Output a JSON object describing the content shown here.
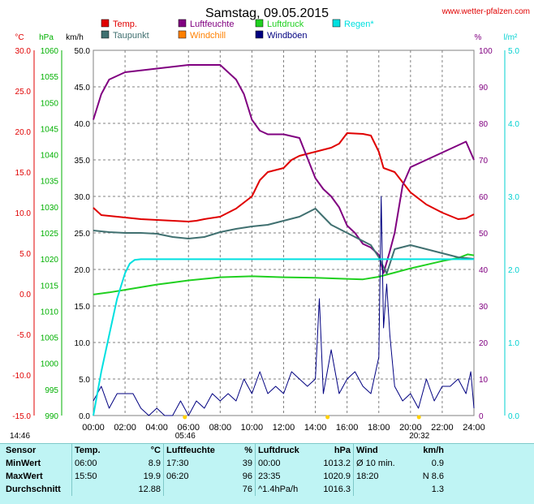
{
  "chart_data": {
    "type": "line",
    "title": "Samstag, 09.05.2015",
    "source": "www.wetter-pfalzen.com",
    "x_ticks": [
      "00:00",
      "02:00",
      "04:00",
      "06:00",
      "08:00",
      "10:00",
      "12:00",
      "14:00",
      "16:00",
      "18:00",
      "20:00",
      "22:00",
      "24:00"
    ],
    "xlim": [
      0,
      24
    ],
    "grid": true,
    "legend_position": "top",
    "axes": {
      "temp": {
        "unit": "°C",
        "ylim": [
          -15,
          30
        ],
        "ticks": [
          "30.0",
          "25.0",
          "20.0",
          "15.0",
          "10.0",
          "5.0",
          "0.0",
          "-5.0",
          "-10.0",
          "-15.0"
        ],
        "color": "#e00000"
      },
      "press": {
        "unit": "hPa",
        "ylim": [
          990,
          1060
        ],
        "ticks": [
          "1060",
          "1055",
          "1050",
          "1045",
          "1040",
          "1035",
          "1030",
          "1025",
          "1020",
          "1015",
          "1010",
          "1005",
          "1000",
          "995",
          "990"
        ],
        "color": "#00b000"
      },
      "wind": {
        "unit": "km/h",
        "ylim": [
          0,
          50
        ],
        "ticks": [
          "50.0",
          "45.0",
          "40.0",
          "35.0",
          "30.0",
          "25.0",
          "20.0",
          "15.0",
          "10.0",
          "5.0",
          "0.0"
        ],
        "color": "#000000"
      },
      "hum": {
        "unit": "%",
        "ylim": [
          0,
          100
        ],
        "ticks": [
          "100",
          "90",
          "80",
          "70",
          "60",
          "50",
          "40",
          "30",
          "20",
          "10",
          "0"
        ],
        "color": "#800080"
      },
      "rain": {
        "unit": "l/m²",
        "ylim": [
          0,
          5
        ],
        "ticks": [
          "5.0",
          "4.0",
          "3.0",
          "2.0",
          "1.0",
          "0.0"
        ],
        "color": "#00d0d0"
      }
    },
    "series": [
      {
        "name": "Temp.",
        "color": "#e00000",
        "axis": "temp",
        "x": [
          0,
          0.5,
          1,
          2,
          3,
          4,
          5,
          6,
          6.5,
          7,
          8,
          9,
          10,
          10.5,
          11,
          12,
          12.5,
          13,
          14,
          15,
          15.5,
          16,
          17,
          17.5,
          18,
          18.3,
          19,
          20,
          21,
          22,
          23,
          23.5,
          24
        ],
        "values": [
          10.6,
          9.7,
          9.6,
          9.4,
          9.2,
          9.1,
          9.0,
          8.9,
          9.0,
          9.2,
          9.5,
          10.5,
          12.0,
          14.0,
          15.0,
          15.5,
          16.5,
          17.0,
          17.5,
          18.0,
          18.5,
          19.8,
          19.7,
          19.5,
          17.5,
          15.5,
          15.0,
          12.5,
          11.0,
          10.0,
          9.2,
          9.3,
          9.8
        ]
      },
      {
        "name": "Luftfeuchte",
        "color": "#800080",
        "axis": "hum",
        "x": [
          0,
          0.5,
          1,
          1.5,
          2,
          3,
          4,
          5,
          6,
          6.5,
          7,
          8,
          9,
          9.5,
          10,
          10.5,
          11,
          12,
          13,
          14,
          14.5,
          15,
          15.5,
          16,
          16.5,
          17,
          17.5,
          18,
          18.3,
          18.7,
          19,
          19.5,
          20,
          21,
          22,
          23,
          23.5,
          24
        ],
        "values": [
          81,
          88,
          92,
          93,
          94,
          94.5,
          95,
          95.5,
          96,
          96,
          96,
          96,
          92,
          88,
          81,
          78,
          77,
          77,
          76,
          65,
          62,
          60,
          57,
          52,
          50,
          47,
          46,
          44,
          39,
          45,
          50,
          63,
          68,
          70,
          72,
          74,
          75,
          70
        ]
      },
      {
        "name": "Luftdruck",
        "color": "#20d020",
        "axis": "press",
        "x": [
          0,
          1,
          2,
          3,
          4,
          5,
          6,
          8,
          10,
          12,
          14,
          16,
          17,
          18,
          19,
          20,
          21,
          22,
          23,
          23.6,
          24
        ],
        "values": [
          1013.2,
          1013.6,
          1014.1,
          1014.6,
          1015.1,
          1015.5,
          1015.9,
          1016.5,
          1016.7,
          1016.5,
          1016.4,
          1016.2,
          1016.1,
          1016.6,
          1017.4,
          1018.2,
          1018.9,
          1019.6,
          1020.2,
          1020.9,
          1020.7
        ]
      },
      {
        "name": "Taupunkt",
        "color": "#407070",
        "axis": "temp",
        "x": [
          0,
          1,
          2,
          3,
          4,
          5,
          6,
          7,
          8,
          9,
          10,
          11,
          12,
          13,
          14,
          15,
          16,
          17,
          17.5,
          18,
          18.5,
          19,
          20,
          21,
          22,
          23,
          24
        ],
        "values": [
          7.8,
          7.6,
          7.5,
          7.5,
          7.4,
          7.0,
          6.8,
          7.0,
          7.6,
          8.0,
          8.3,
          8.5,
          9.0,
          9.5,
          10.5,
          8.5,
          7.5,
          6.5,
          6.0,
          4.5,
          2.5,
          5.5,
          6.0,
          5.5,
          5.0,
          4.5,
          4.3
        ]
      },
      {
        "name": "Windchill",
        "color": "#ff8000",
        "axis": "temp",
        "x": [],
        "values": []
      },
      {
        "name": "Windböen",
        "color": "#000080",
        "axis": "wind",
        "x": [
          0,
          0.5,
          1,
          1.5,
          2,
          2.5,
          3,
          3.5,
          4,
          4.5,
          5,
          5.5,
          6,
          6.5,
          7,
          7.5,
          8,
          8.5,
          9,
          9.5,
          10,
          10.5,
          11,
          11.5,
          12,
          12.5,
          13,
          13.5,
          14,
          14.25,
          14.5,
          15,
          15.5,
          16,
          16.5,
          17,
          17.5,
          18,
          18.15,
          18.3,
          18.5,
          18.7,
          19,
          19.5,
          20,
          20.5,
          21,
          21.5,
          22,
          22.5,
          23,
          23.5,
          23.8,
          24
        ],
        "values": [
          2,
          4,
          1,
          3,
          3,
          3,
          1,
          0,
          1,
          0,
          0,
          2,
          0,
          2,
          1,
          3,
          2,
          3,
          2,
          5,
          3,
          6,
          3,
          4,
          3,
          6,
          5,
          4,
          5,
          16,
          3,
          9,
          3,
          5,
          6,
          4,
          3,
          8,
          30,
          12,
          18,
          11,
          4,
          2,
          3,
          1,
          5,
          2,
          4,
          4,
          5,
          3,
          6,
          1
        ]
      },
      {
        "name": "Regen*",
        "color": "#00e0e0",
        "axis": "rain",
        "x": [
          0,
          0.5,
          1,
          1.5,
          2,
          2.3,
          2.6,
          3,
          24
        ],
        "values": [
          0,
          0.6,
          1.1,
          1.6,
          1.95,
          2.08,
          2.13,
          2.14,
          2.14
        ]
      }
    ],
    "annotations": [
      {
        "label": "14:46",
        "x": 14.77
      },
      {
        "label": "05:46",
        "x": 5.77
      },
      {
        "label": "20:32",
        "x": 20.53
      }
    ]
  },
  "stats": {
    "headers": [
      "Sensor",
      "Temp.",
      "°C",
      "Luftfeuchte",
      "%",
      "Luftdruck",
      "hPa",
      "Wind",
      "km/h"
    ],
    "rows": [
      {
        "label": "MinWert",
        "temp_time": "06:00",
        "temp": "8.9",
        "hum_time": "17:30",
        "hum": "39",
        "press_time": "00:00",
        "press": "1013.2",
        "wind_label": "Ø 10 min.",
        "wind": "0.9"
      },
      {
        "label": "MaxWert",
        "temp_time": "15:50",
        "temp": "19.9",
        "hum_time": "06:20",
        "hum": "96",
        "press_time": "23:35",
        "press": "1020.9",
        "wind_label": "18:20",
        "wind": "N 8.6"
      },
      {
        "label": "Durchschnitt",
        "temp_time": "",
        "temp": "12.88",
        "hum_time": "",
        "hum": "76",
        "press_time": "^1.4hPa/h",
        "press": "1016.3",
        "wind_label": "",
        "wind": "1.3"
      }
    ]
  }
}
